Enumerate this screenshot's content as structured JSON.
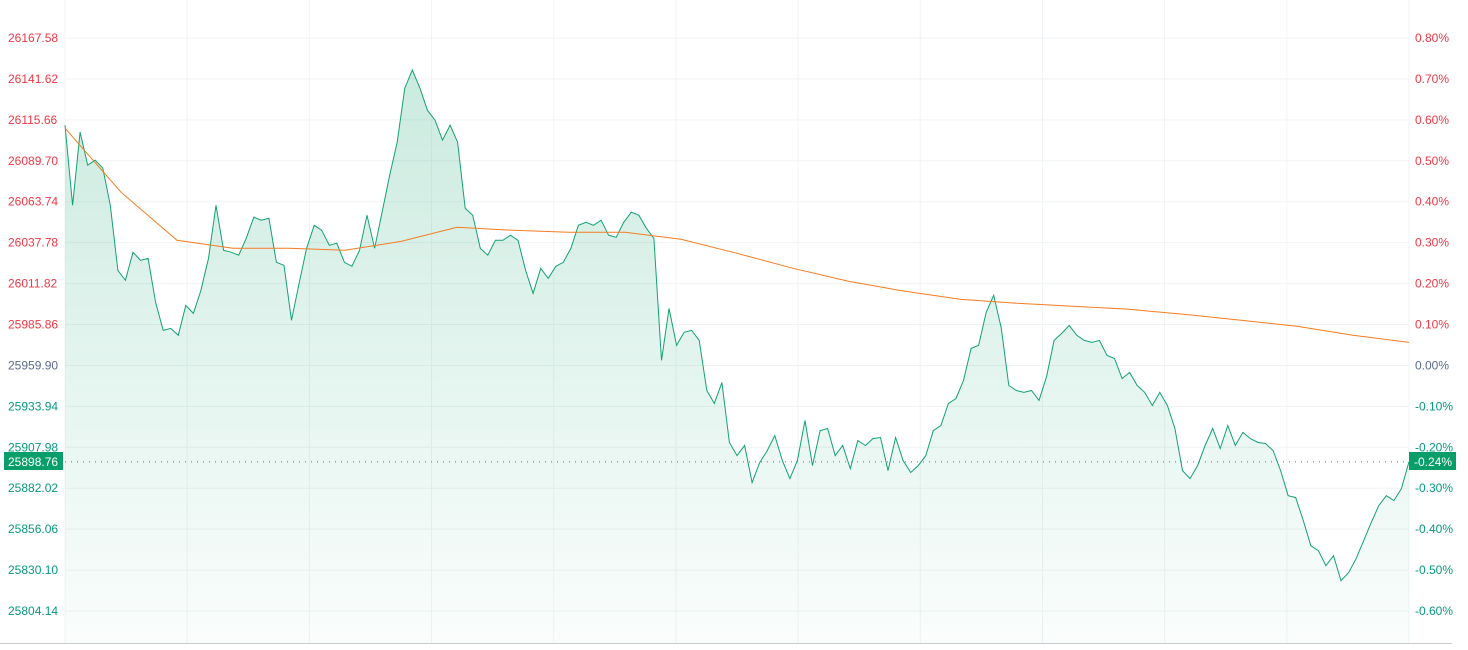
{
  "chart_data": {
    "type": "area",
    "title": "",
    "xlabel": "",
    "ylabel": "",
    "grid": true,
    "reference_price": 25959.9,
    "ylim": [
      25785,
      26180
    ],
    "left_ticks": [
      "26167.58",
      "26141.62",
      "26115.66",
      "26089.70",
      "26063.74",
      "26037.78",
      "26011.82",
      "25985.86",
      "25959.90",
      "25933.94",
      "25907.98",
      "25882.02",
      "25856.06",
      "25830.10",
      "25804.14"
    ],
    "right_ticks": [
      "0.80%",
      "0.70%",
      "0.60%",
      "0.50%",
      "0.40%",
      "0.30%",
      "0.20%",
      "0.10%",
      "0.00%",
      "-0.10%",
      "-0.20%",
      "-0.30%",
      "-0.40%",
      "-0.50%",
      "-0.60%"
    ],
    "current_price": "25898.76",
    "current_change": "-0.24%",
    "series": [
      {
        "type": "area",
        "values": [
          26112.3,
          26061.5,
          26107.9,
          26086.9,
          26090.1,
          26085.0,
          26061.5,
          26020.2,
          26013.9,
          26031.7,
          26026.6,
          26027.8,
          25999.9,
          25982.1,
          25983.4,
          25979.0,
          25998.0,
          25992.9,
          26007.5,
          26027.8,
          26061.5,
          26032.9,
          26031.7,
          26029.8,
          26040.5,
          26053.9,
          26052.0,
          26053.2,
          26025.3,
          26023.4,
          25988.5,
          26012.0,
          26034.2,
          26048.8,
          26045.6,
          26036.1,
          26037.4,
          26025.3,
          26022.8,
          26032.9,
          26055.2,
          26034.2,
          26057.1,
          26080.6,
          26101.5,
          26135.8,
          26147.2,
          26135.8,
          26121.8,
          26115.5,
          26102.8,
          26112.3,
          26101.5,
          26059.6,
          26055.2,
          26034.2,
          26029.8,
          26039.3,
          26039.3,
          26042.5,
          26039.3,
          26020.2,
          26005.6,
          26021.5,
          26015.1,
          26022.8,
          26025.3,
          26034.2,
          26048.8,
          26050.7,
          26048.8,
          26052.0,
          26042.5,
          26041.2,
          26050.7,
          26057.1,
          26055.2,
          26046.9,
          26040.5,
          25963.1,
          25996.1,
          25972.6,
          25980.9,
          25982.1,
          25975.8,
          25944.0,
          25935.8,
          25949.1,
          25911.0,
          25902.7,
          25909.1,
          25885.6,
          25898.3,
          25905.9,
          25915.4,
          25899.6,
          25888.1,
          25899.6,
          25925.0,
          25896.4,
          25918.6,
          25919.9,
          25902.7,
          25909.1,
          25894.5,
          25912.3,
          25909.1,
          25913.5,
          25914.2,
          25893.2,
          25914.2,
          25899.6,
          25892.0,
          25896.4,
          25902.7,
          25918.6,
          25921.8,
          25935.8,
          25938.9,
          25950.4,
          25970.7,
          25972.6,
          25993.6,
          26004.4,
          25983.4,
          25947.2,
          25944.0,
          25942.8,
          25944.0,
          25937.7,
          25952.9,
          25975.8,
          25980.2,
          25985.3,
          25979.0,
          25975.8,
          25974.5,
          25975.8,
          25966.3,
          25964.3,
          25951.6,
          25955.5,
          25947.2,
          25942.8,
          25934.5,
          25942.8,
          25934.5,
          25919.9,
          25893.2,
          25888.1,
          25896.4,
          25909.1,
          25919.9,
          25907.2,
          25921.8,
          25909.1,
          25917.4,
          25913.5,
          25911.0,
          25910.4,
          25905.9,
          25893.2,
          25877.3,
          25876.1,
          25861.5,
          25845.6,
          25842.4,
          25832.9,
          25839.2,
          25823.4,
          25828.5,
          25837.3,
          25848.8,
          25860.2,
          25871.0,
          25877.3,
          25874.2,
          25881.8,
          25898.76
        ]
      },
      {
        "type": "line",
        "values": [
          26110.4,
          26069.8,
          26039.3,
          26034.2,
          26034.2,
          26032.9,
          26038.6,
          26047.5,
          26045.6,
          26044.4,
          26044.4,
          26039.9,
          26031.0,
          26021.5,
          26013.2,
          26006.9,
          26001.8,
          25999.3,
          25997.4,
          25995.5,
          25992.3,
          25988.5,
          25984.7,
          25979.0,
          25974.5
        ]
      }
    ],
    "colors": {
      "up": "#f23645",
      "down": "#089981",
      "neutral": "#5b6b8c",
      "price_line": "#12a36e",
      "ma_line": "#f57c22",
      "grid": "#f0f3f5"
    }
  }
}
